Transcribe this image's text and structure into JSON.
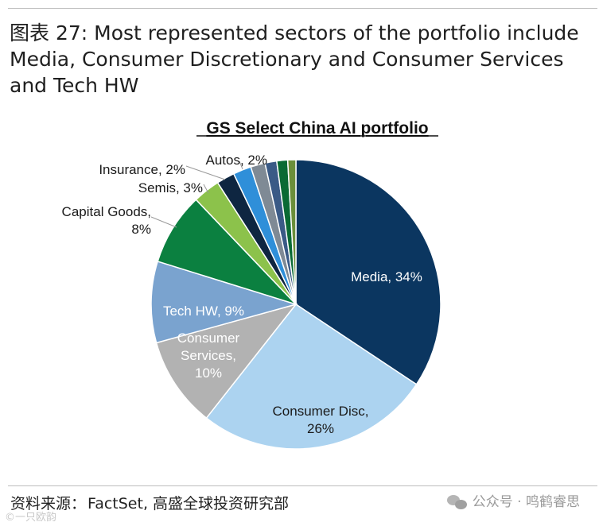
{
  "header": {
    "title": "图表 27: Most represented sectors of the portfolio include Media, Consumer Discretionary and Consumer Services and Tech HW"
  },
  "chart_data": {
    "type": "pie",
    "title": "GS Select China AI portfolio",
    "slices": [
      {
        "lines": [
          "Media, 34%"
        ],
        "value": 34,
        "color": "#0b3660",
        "label_color": "#ffffff"
      },
      {
        "lines": [
          "Consumer Disc,",
          "26%"
        ],
        "value": 26,
        "color": "#acd3f0",
        "label_color": "#1a1a1a"
      },
      {
        "lines": [
          "Consumer",
          "Services,",
          "10%"
        ],
        "value": 10,
        "color": "#b2b2b2",
        "label_color": "#ffffff"
      },
      {
        "lines": [
          "Tech HW, 9%"
        ],
        "value": 9,
        "color": "#7aa3cf",
        "label_color": "#ffffff"
      },
      {
        "lines": [
          "Capital Goods,",
          "8%"
        ],
        "value": 8,
        "color": "#0b8040",
        "label_color": "#1a1a1a"
      },
      {
        "lines": [
          "Semis, 3%"
        ],
        "value": 3,
        "color": "#8cc24b",
        "label_color": "#1a1a1a"
      },
      {
        "lines": [
          "Insurance, 2%"
        ],
        "value": 2,
        "color": "#0e2641",
        "label_color": "#1a1a1a"
      },
      {
        "lines": [
          "Autos, 2%"
        ],
        "value": 2,
        "color": "#2f8fd9",
        "label_color": "#1a1a1a"
      },
      {
        "lines": [],
        "value": 1.6,
        "color": "#7f8a95",
        "label_color": "#1a1a1a"
      },
      {
        "lines": [],
        "value": 1.3,
        "color": "#3a5a86",
        "label_color": "#1a1a1a"
      },
      {
        "lines": [],
        "value": 1.2,
        "color": "#0a6a34",
        "label_color": "#1a1a1a"
      },
      {
        "lines": [],
        "value": 0.9,
        "color": "#6b8f3a",
        "label_color": "#1a1a1a"
      }
    ]
  },
  "footer": {
    "source_label": "资料来源：",
    "source_text": "FactSet, 高盛全球投资研究部",
    "wechat_text": "公众号 · 鸣鹤睿思",
    "watermark_text": "©一只欧韵"
  }
}
